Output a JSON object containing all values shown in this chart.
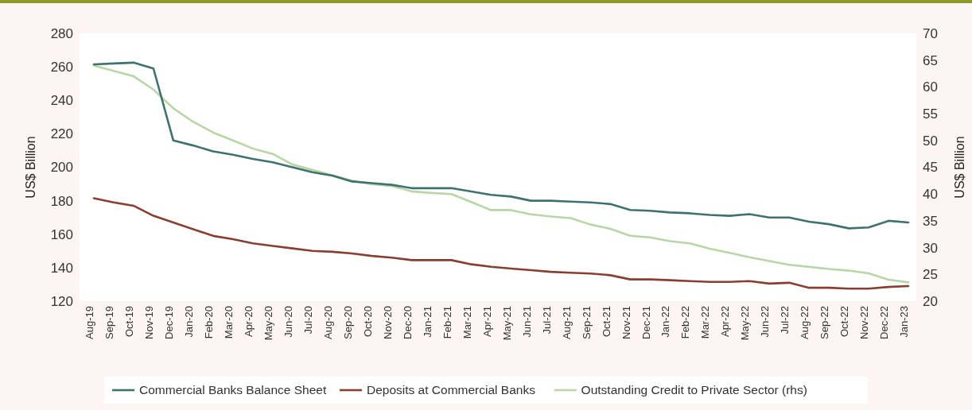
{
  "chart_data": {
    "type": "line",
    "ylabel": "US$ Billion",
    "y2label": "US$ Billion",
    "categories": [
      "Aug-19",
      "Sep-19",
      "Oct-19",
      "Nov-19",
      "Dec-19",
      "Jan-20",
      "Feb-20",
      "Mar-20",
      "Apr-20",
      "May-20",
      "Jun-20",
      "Jul-20",
      "Aug-20",
      "Sep-20",
      "Oct-20",
      "Nov-20",
      "Dec-20",
      "Jan-21",
      "Feb-21",
      "Mar-21",
      "Apr-21",
      "May-21",
      "Jun-21",
      "Jul-21",
      "Aug-21",
      "Sep-21",
      "Oct-21",
      "Nov-21",
      "Dec-21",
      "Jan-22",
      "Feb-22",
      "Mar-22",
      "Apr-22",
      "May-22",
      "Jun-22",
      "Jul-22",
      "Aug-22",
      "Sep-22",
      "Oct-22",
      "Nov-22",
      "Dec-22",
      "Jan-23"
    ],
    "series": [
      {
        "name": "Commercial Banks Balance Sheet",
        "color": "#3e7270",
        "values": [
          261.5,
          262,
          262.5,
          259,
          216,
          213,
          209.5,
          207.5,
          205,
          203,
          200,
          197,
          195,
          191.5,
          190.5,
          189.5,
          187.5,
          187.5,
          187.5,
          185.5,
          183.5,
          182.5,
          180,
          180,
          179.5,
          179,
          178,
          174.5,
          174,
          173,
          172.5,
          171.5,
          171,
          172,
          170,
          170,
          167.5,
          166,
          163.5,
          164,
          168,
          167
        ]
      },
      {
        "name": "Deposits at Commercial Banks",
        "color": "#8b3e30",
        "values": [
          181.5,
          179,
          177,
          171,
          167,
          163,
          159,
          157,
          154.5,
          153,
          151.5,
          150,
          149.5,
          148.5,
          147,
          146,
          144.5,
          144.5,
          144.5,
          142,
          140.5,
          139.5,
          138.5,
          137.5,
          137,
          136.5,
          135.5,
          133,
          133,
          132.5,
          132,
          131.5,
          131.5,
          132,
          130.5,
          131,
          128,
          128,
          127.5,
          127.5,
          128.5,
          129
        ]
      },
      {
        "name": "Outstanding Credit to Private Sector (rhs)",
        "color": "#b9d6a6",
        "axis": "y2",
        "values": [
          64,
          63,
          62,
          59.5,
          56,
          53.5,
          51.5,
          50,
          48.5,
          47.5,
          45.5,
          44.5,
          43.5,
          42.5,
          41.8,
          41.5,
          40.5,
          40.2,
          40,
          38.5,
          37,
          37,
          36.2,
          35.8,
          35.5,
          34.3,
          33.5,
          32.2,
          31.9,
          31.2,
          30.8,
          29.8,
          29,
          28.2,
          27.5,
          26.8,
          26.4,
          26,
          25.7,
          25.2,
          24,
          23.5
        ]
      }
    ],
    "ylim": [
      120,
      280
    ],
    "yticks": [
      120,
      140,
      160,
      180,
      200,
      220,
      240,
      260,
      280
    ],
    "y2lim": [
      20,
      70
    ],
    "y2ticks": [
      20,
      25,
      30,
      35,
      40,
      45,
      50,
      55,
      60,
      65,
      70
    ],
    "grid": false,
    "legend": "bottom"
  }
}
